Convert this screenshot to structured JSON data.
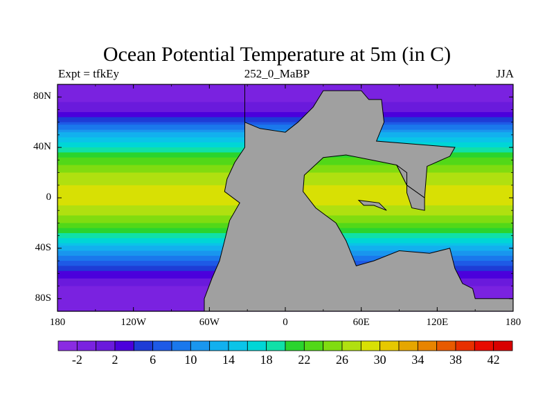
{
  "figure": {
    "title": "Ocean Potential Temperature at 5m (in C)",
    "left_label": "Expt = tfkEy",
    "center_label": "252_0_MaBP",
    "right_label": "JJA"
  },
  "axes": {
    "lat_ticks": [
      "80N",
      "40N",
      "0",
      "40S",
      "80S"
    ],
    "lon_ticks": [
      "180",
      "120W",
      "60W",
      "0",
      "60E",
      "120E",
      "180"
    ]
  },
  "colorbar": {
    "labels": [
      "-2",
      "2",
      "6",
      "10",
      "14",
      "18",
      "22",
      "26",
      "30",
      "34",
      "38",
      "42"
    ],
    "colors": [
      "#8a2be2",
      "#7a22e0",
      "#6a1adc",
      "#4b00dc",
      "#1e3cd6",
      "#1e5ae6",
      "#1a78ec",
      "#1996ee",
      "#12b0ee",
      "#0ac4e8",
      "#00d6d6",
      "#10e0a8",
      "#2ad42e",
      "#52d818",
      "#80dc10",
      "#b0e010",
      "#d8e004",
      "#e6c800",
      "#e6a600",
      "#e88400",
      "#e85a00",
      "#e83000",
      "#e80a00",
      "#d80000"
    ]
  },
  "map": {
    "land_color": "#a0a0a0",
    "temperature_bands": [
      {
        "lat": 90,
        "temp": -1
      },
      {
        "lat": 80,
        "temp": -1
      },
      {
        "lat": 70,
        "temp": 1
      },
      {
        "lat": 60,
        "temp": 6
      },
      {
        "lat": 50,
        "temp": 13
      },
      {
        "lat": 40,
        "temp": 18
      },
      {
        "lat": 30,
        "temp": 23
      },
      {
        "lat": 20,
        "temp": 26
      },
      {
        "lat": 10,
        "temp": 28
      },
      {
        "lat": 0,
        "temp": 29
      },
      {
        "lat": -10,
        "temp": 27
      },
      {
        "lat": -20,
        "temp": 24
      },
      {
        "lat": -30,
        "temp": 19
      },
      {
        "lat": -40,
        "temp": 13
      },
      {
        "lat": -50,
        "temp": 8
      },
      {
        "lat": -60,
        "temp": 3
      },
      {
        "lat": -70,
        "temp": 0
      },
      {
        "lat": -80,
        "temp": -1
      },
      {
        "lat": -90,
        "temp": -1
      }
    ],
    "land_polygons": [
      [
        [
          -32,
          90
        ],
        [
          -32,
          40
        ],
        [
          -40,
          28
        ],
        [
          -46,
          15
        ],
        [
          -48,
          5
        ],
        [
          -36,
          -4
        ],
        [
          -44,
          -18
        ],
        [
          -48,
          -34
        ],
        [
          -52,
          -50
        ],
        [
          -58,
          -64
        ],
        [
          -64,
          -80
        ],
        [
          -64,
          -90
        ],
        [
          180,
          -90
        ],
        [
          180,
          -80
        ],
        [
          150,
          -80
        ],
        [
          148,
          -72
        ],
        [
          140,
          -68
        ],
        [
          134,
          -56
        ],
        [
          130,
          -40
        ],
        [
          114,
          -44
        ],
        [
          90,
          -42
        ],
        [
          70,
          -50
        ],
        [
          56,
          -54
        ],
        [
          48,
          -34
        ],
        [
          40,
          -20
        ],
        [
          24,
          -8
        ],
        [
          14,
          5
        ],
        [
          15,
          18
        ],
        [
          30,
          32
        ],
        [
          48,
          34
        ],
        [
          68,
          30
        ],
        [
          88,
          26
        ],
        [
          96,
          10
        ],
        [
          110,
          0
        ],
        [
          112,
          25
        ],
        [
          130,
          33
        ],
        [
          134,
          40
        ],
        [
          72,
          45
        ],
        [
          78,
          60
        ],
        [
          76,
          78
        ],
        [
          66,
          78
        ],
        [
          60,
          85
        ],
        [
          30,
          85
        ],
        [
          22,
          72
        ],
        [
          10,
          60
        ],
        [
          0,
          52
        ],
        [
          -20,
          55
        ],
        [
          -32,
          60
        ],
        [
          -32,
          90
        ]
      ],
      [
        [
          88,
          26
        ],
        [
          96,
          20
        ],
        [
          96,
          4
        ],
        [
          100,
          -8
        ],
        [
          110,
          -10
        ],
        [
          110,
          0
        ],
        [
          96,
          10
        ],
        [
          88,
          26
        ]
      ],
      [
        [
          58,
          -2
        ],
        [
          62,
          -6
        ],
        [
          70,
          -6
        ],
        [
          80,
          -10
        ],
        [
          74,
          -4
        ],
        [
          58,
          -2
        ]
      ]
    ]
  }
}
